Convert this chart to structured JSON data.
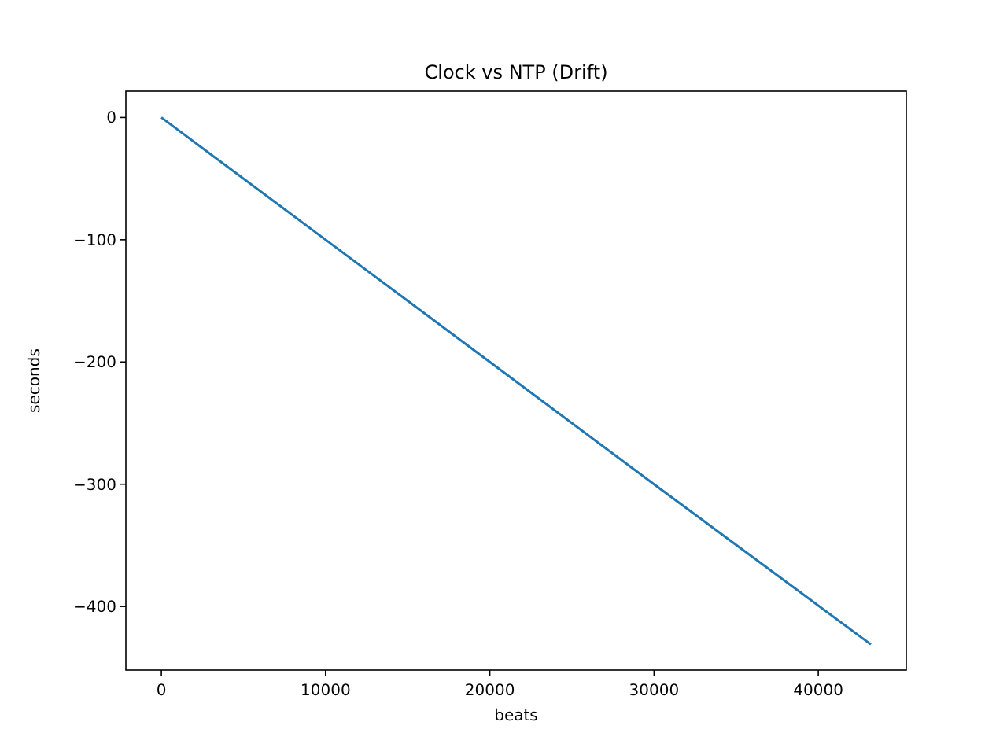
{
  "chart_data": {
    "type": "line",
    "title": "Clock vs NTP (Drift)",
    "xlabel": "beats",
    "ylabel": "seconds",
    "x": [
      0,
      10000,
      20000,
      30000,
      43200
    ],
    "series": [
      {
        "color": "#1f77b4",
        "values": [
          0,
          -100,
          -200,
          -300,
          -431
        ]
      }
    ],
    "xlim": [
      -2160,
      45360
    ],
    "ylim": [
      -452,
      21.5
    ],
    "xticks": [
      0,
      10000,
      20000,
      30000,
      40000
    ],
    "yticks": [
      -400,
      -300,
      -200,
      -100,
      0
    ],
    "grid": false
  }
}
